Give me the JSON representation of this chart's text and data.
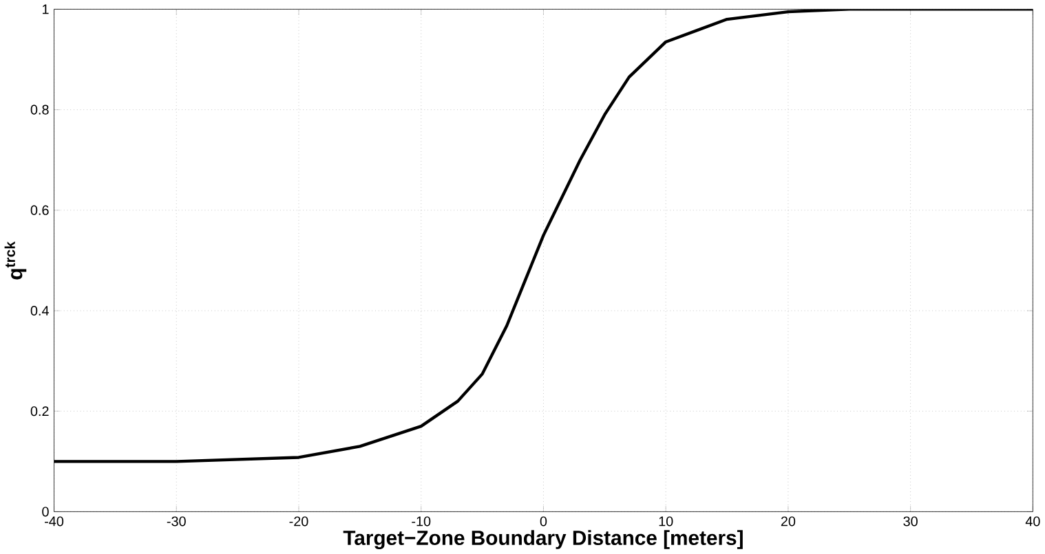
{
  "chart_data": {
    "type": "line",
    "xlabel": "Target−Zone Boundary Distance [meters]",
    "ylabel": "q$^{trck}$",
    "x": [
      -40,
      -30,
      -20,
      -15,
      -10,
      -7,
      -5,
      -3,
      -1,
      0,
      1,
      3,
      5,
      7,
      10,
      15,
      20,
      25,
      30,
      40
    ],
    "series": [
      {
        "color": "#000000",
        "values": [
          0.1,
          0.1,
          0.108,
          0.13,
          0.17,
          0.22,
          0.274,
          0.37,
          0.49,
          0.55,
          0.6,
          0.7,
          0.79,
          0.865,
          0.935,
          0.98,
          0.995,
          1,
          1,
          1
        ]
      }
    ],
    "xlim": [
      -40,
      40
    ],
    "ylim": [
      0,
      1
    ],
    "xticks": [
      -40,
      -30,
      -20,
      -10,
      0,
      10,
      20,
      30,
      40
    ],
    "yticks": [
      0,
      0.2,
      0.4,
      0.6,
      0.8,
      1
    ],
    "grid": true,
    "line_style": "solid"
  }
}
